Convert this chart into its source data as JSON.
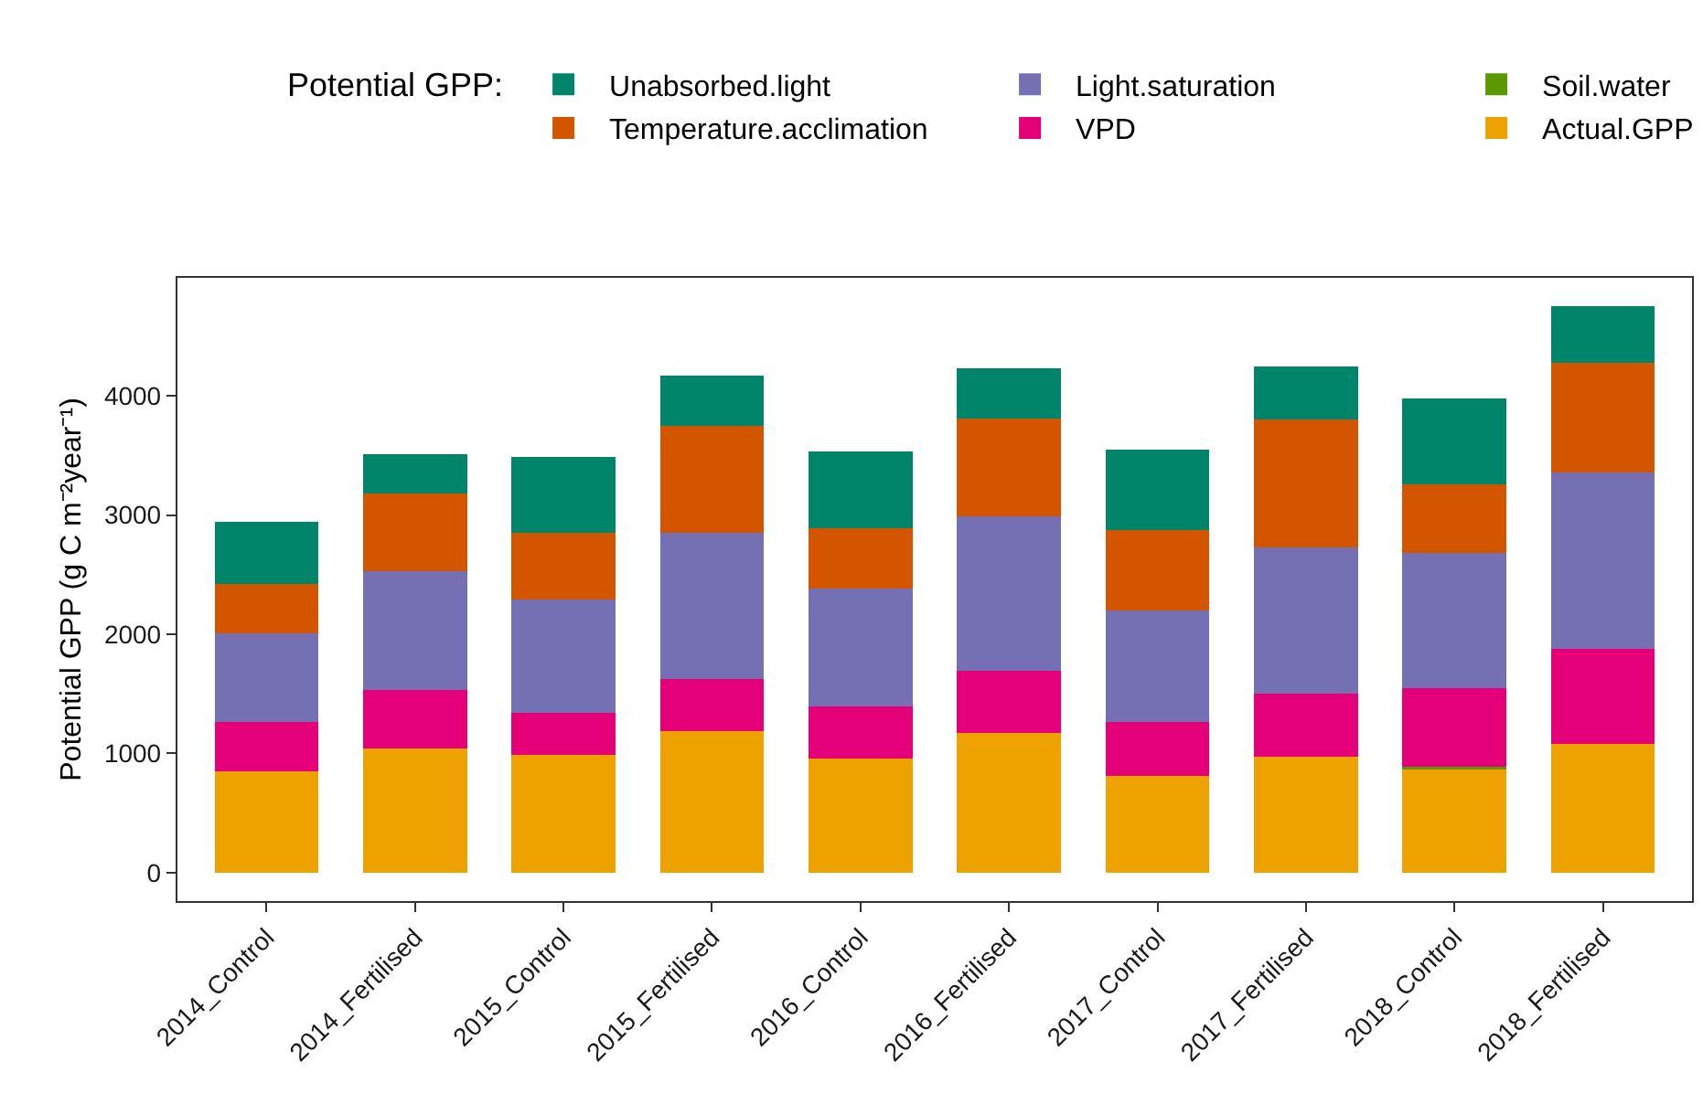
{
  "chart_data": {
    "type": "bar",
    "stacked": true,
    "legend_title": "Potential GPP:",
    "ylabel": "Potential GPP (g C m⁻²year⁻¹)",
    "categories": [
      "2014_Control",
      "2014_Fertilised",
      "2015_Control",
      "2015_Fertilised",
      "2016_Control",
      "2016_Fertilised",
      "2017_Control",
      "2017_Fertilised",
      "2018_Control",
      "2018_Fertilised"
    ],
    "series": [
      {
        "name": "Actual.GPP",
        "color": "#eda200",
        "values": [
          850,
          1040,
          990,
          1190,
          960,
          1170,
          810,
          970,
          870,
          1080
        ]
      },
      {
        "name": "Soil.water",
        "color": "#5a9900",
        "values": [
          0,
          0,
          0,
          0,
          0,
          0,
          0,
          0,
          20,
          0
        ]
      },
      {
        "name": "VPD",
        "color": "#e5007a",
        "values": [
          410,
          490,
          350,
          430,
          430,
          520,
          450,
          530,
          660,
          800
        ]
      },
      {
        "name": "Light.saturation",
        "color": "#7570b3",
        "values": [
          750,
          1000,
          950,
          1230,
          990,
          1300,
          940,
          1230,
          1130,
          1480
        ]
      },
      {
        "name": "Temperature.acclimation",
        "color": "#d45500",
        "values": [
          410,
          650,
          560,
          900,
          510,
          820,
          670,
          1070,
          580,
          920
        ]
      },
      {
        "name": "Unabsorbed.light",
        "color": "#00846a",
        "values": [
          520,
          330,
          640,
          420,
          640,
          420,
          680,
          450,
          720,
          470
        ]
      }
    ],
    "ylim": [
      -240,
      4990
    ],
    "yticks": [
      0,
      1000,
      2000,
      3000,
      4000
    ],
    "grid": false,
    "legend": "top"
  }
}
